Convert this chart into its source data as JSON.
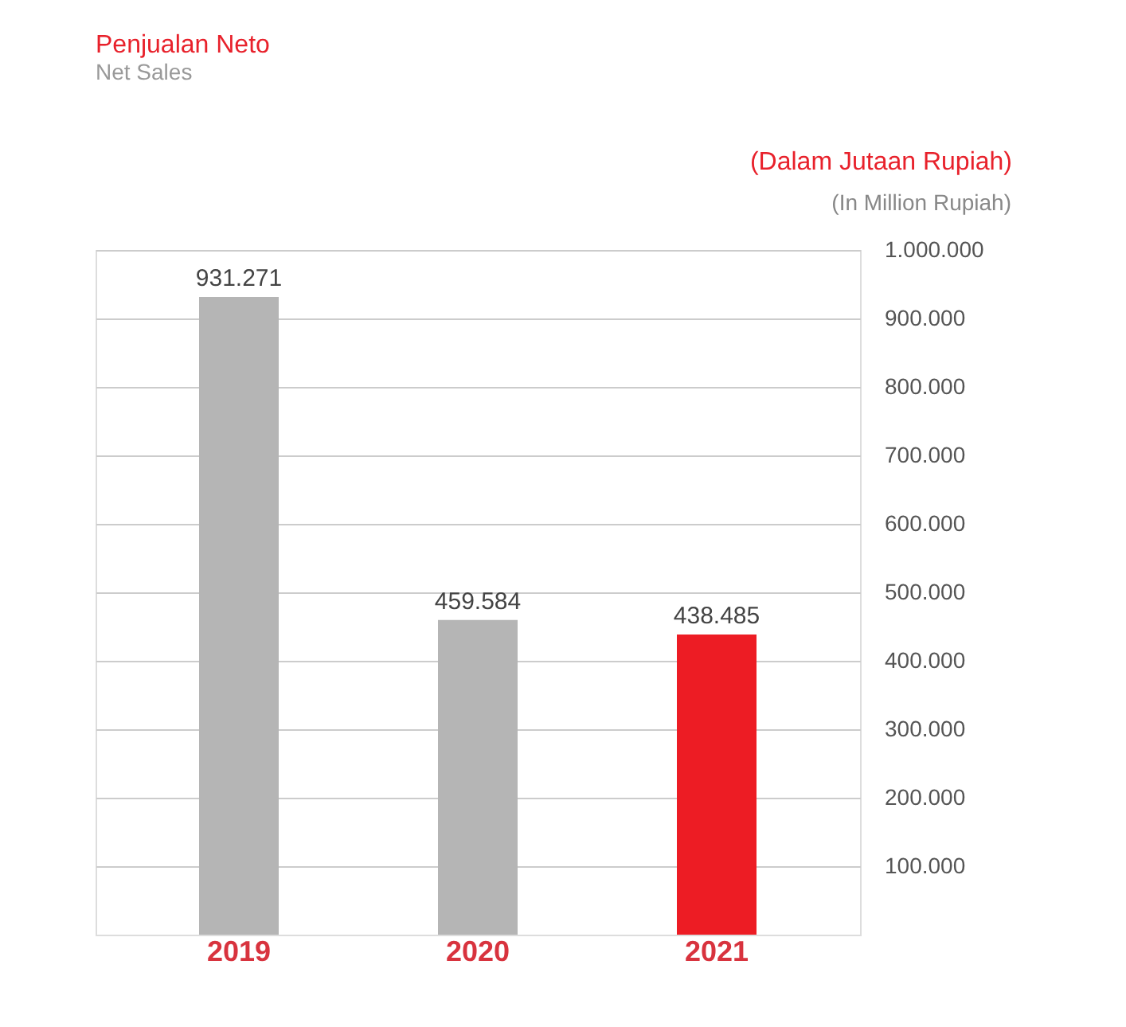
{
  "chart_data": {
    "type": "bar",
    "title": "Penjualan Neto",
    "subtitle": "Net Sales",
    "ylabel": "(Dalam Jutaan Rupiah)",
    "annotations": [
      "(In Million Rupiah)"
    ],
    "categories": [
      "2019",
      "2020",
      "2021"
    ],
    "values": [
      931271,
      459584,
      438485
    ],
    "colors": [
      "#b5b5b5",
      "#b5b5b5",
      "#ed1c24"
    ],
    "value_labels": [
      "931.271",
      "459.584",
      "438.485"
    ],
    "ylim": [
      0,
      1000000
    ],
    "yticks": [
      {
        "value": 100000,
        "label": "100.000"
      },
      {
        "value": 200000,
        "label": "200.000"
      },
      {
        "value": 300000,
        "label": "300.000"
      },
      {
        "value": 400000,
        "label": "400.000"
      },
      {
        "value": 500000,
        "label": "500.000"
      },
      {
        "value": 600000,
        "label": "600.000"
      },
      {
        "value": 700000,
        "label": "700.000"
      },
      {
        "value": 800000,
        "label": "800.000"
      },
      {
        "value": 900000,
        "label": "900.000"
      },
      {
        "value": 1000000,
        "label": "1.000.000"
      }
    ],
    "grid": "y"
  }
}
